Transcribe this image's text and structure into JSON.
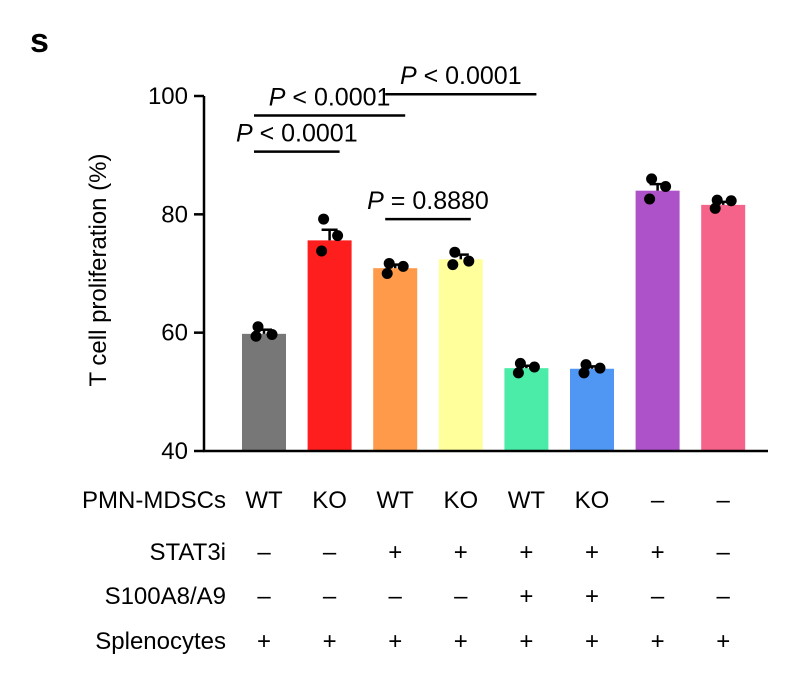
{
  "panel_label": "s",
  "chart_data": {
    "type": "bar",
    "title": "",
    "xlabel": "",
    "ylabel": "T cell proliferation (%)",
    "ylim": [
      40,
      100
    ],
    "yticks": [
      "40",
      "60",
      "80",
      "100"
    ],
    "grid": false,
    "values": [
      59.8,
      75.6,
      70.9,
      72.4,
      54.0,
      53.9,
      84.0,
      81.6
    ],
    "errors": [
      0.7,
      1.8,
      0.6,
      0.8,
      0.4,
      0.4,
      1.1,
      0.5
    ],
    "colors": [
      "#777777",
      "#ff1e1e",
      "#ff9a4a",
      "#ffff9c",
      "#4aeca8",
      "#4f97f3",
      "#ad52c9",
      "#f5628a"
    ],
    "points": [
      [
        61.0,
        59.7,
        59.4
      ],
      [
        79.2,
        76.4,
        73.8
      ],
      [
        71.7,
        71.2,
        70.0
      ],
      [
        73.6,
        72.1,
        71.5
      ],
      [
        54.8,
        54.2,
        53.2
      ],
      [
        54.6,
        54.0,
        53.2
      ],
      [
        86.0,
        84.7,
        82.6
      ],
      [
        82.4,
        82.3,
        81.0
      ]
    ],
    "comparisons": [
      {
        "from": 0,
        "to": 1,
        "y": 90.6,
        "label_a": "P",
        "label_b": " < 0.0001"
      },
      {
        "from": 0,
        "to": 2,
        "y": 96.7,
        "label_a": "P",
        "label_b": " < 0.0001"
      },
      {
        "from": 2,
        "to": 3,
        "y": 79.2,
        "label_a": "P",
        "label_b": " = 0.8880"
      },
      {
        "from": 2,
        "to": 4,
        "y": 100.3,
        "label_a": "P",
        "label_b": " < 0.0001"
      }
    ],
    "table": [
      {
        "label": "PMN-MDSCs",
        "cells": [
          "WT",
          "KO",
          "WT",
          "KO",
          "WT",
          "KO",
          "–",
          "–"
        ]
      },
      {
        "label": "STAT3i",
        "cells": [
          "–",
          "–",
          "+",
          "+",
          "+",
          "+",
          "+",
          "–"
        ]
      },
      {
        "label": "S100A8/A9",
        "cells": [
          "–",
          "–",
          "–",
          "–",
          "+",
          "+",
          "–",
          "–"
        ]
      },
      {
        "label": "Splenocytes",
        "cells": [
          "+",
          "+",
          "+",
          "+",
          "+",
          "+",
          "+",
          "+"
        ]
      }
    ]
  }
}
